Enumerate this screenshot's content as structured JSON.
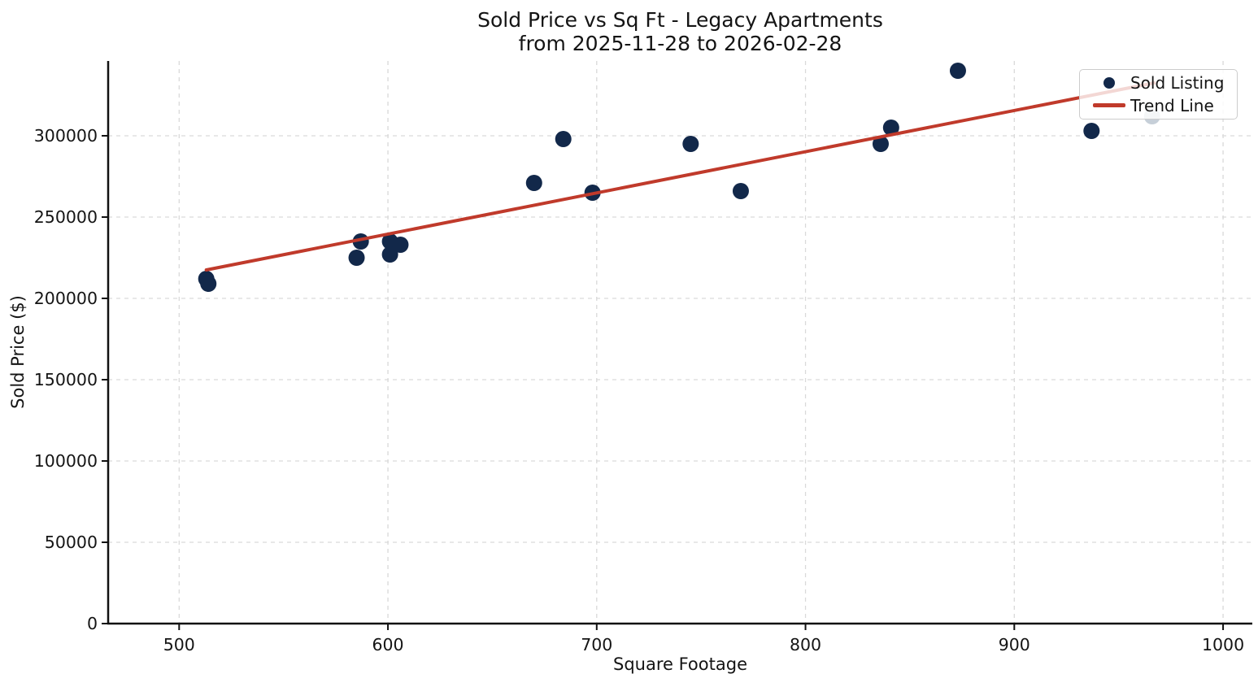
{
  "title": "Sold Price vs Sq Ft - Legacy Apartments",
  "subtitle": "from 2025-11-28 to 2026-02-28",
  "axes": {
    "xlabel": "Square Footage",
    "ylabel": "Sold Price ($)"
  },
  "legend": {
    "position": "upper right",
    "items": [
      {
        "label": "Sold Listing",
        "marker": "dot",
        "color": "#12284a"
      },
      {
        "label": "Trend Line",
        "marker": "line",
        "color": "#c03a2b"
      }
    ]
  },
  "colors": {
    "background": "#ffffff",
    "axis": "#111111",
    "grid": "#d9d9d9",
    "tick_text": "#141414",
    "scatter": "#12284a",
    "trend": "#c03a2b",
    "gray_point": "#c6cfd8"
  },
  "chart_data": {
    "type": "scatter",
    "title": "Sold Price vs Sq Ft - Legacy Apartments",
    "subtitle": "from 2025-11-28 to 2026-02-28",
    "xlabel": "Square Footage",
    "ylabel": "Sold Price ($)",
    "xlim": [
      466,
      1014
    ],
    "ylim": [
      0,
      346000
    ],
    "x_ticks": [
      500,
      600,
      700,
      800,
      900,
      1000
    ],
    "y_ticks": [
      0,
      50000,
      100000,
      150000,
      200000,
      250000,
      300000
    ],
    "grid": true,
    "legend_position": "upper right",
    "series": [
      {
        "name": "Sold Listing",
        "type": "scatter",
        "color": "#12284a",
        "marker_radius": 10,
        "points": [
          [
            513,
            212000
          ],
          [
            514,
            209000
          ],
          [
            585,
            225000
          ],
          [
            587,
            235000
          ],
          [
            601,
            235000
          ],
          [
            601,
            227000
          ],
          [
            606,
            233000
          ],
          [
            670,
            271000
          ],
          [
            684,
            298000
          ],
          [
            698,
            265000
          ],
          [
            745,
            295000
          ],
          [
            769,
            266000
          ],
          [
            836,
            295000
          ],
          [
            841,
            305000
          ],
          [
            873,
            340000
          ],
          [
            937,
            303000
          ]
        ]
      },
      {
        "name": "Unlabeled Gray Listing",
        "type": "scatter",
        "color": "#c6cfd8",
        "marker_radius": 10,
        "points": [
          [
            966,
            312000
          ]
        ]
      },
      {
        "name": "Trend Line",
        "type": "line",
        "color": "#c03a2b",
        "stroke_width": 4,
        "points": [
          [
            513,
            217500
          ],
          [
            967,
            332500
          ]
        ]
      }
    ]
  }
}
